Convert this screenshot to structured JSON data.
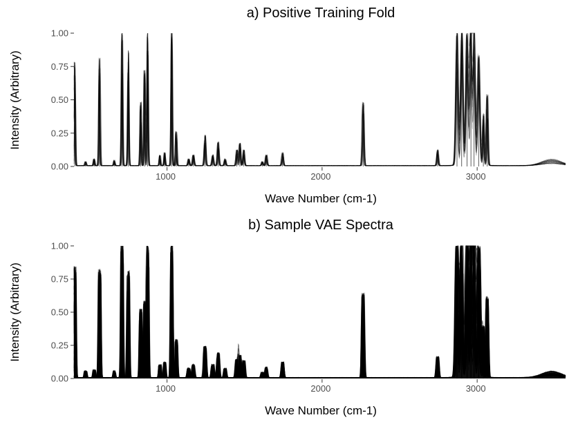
{
  "chart_data": [
    {
      "type": "line",
      "title": "a) Positive Training Fold",
      "xlabel": "Wave Number (cm-1)",
      "ylabel": "Intensity (Arbitrary)",
      "xlim": [
        400,
        3570
      ],
      "ylim": [
        0,
        1.0
      ],
      "xticks": [
        1000,
        2000,
        3000
      ],
      "xtick_labels": [
        "1000",
        "2000",
        "3000"
      ],
      "yticks": [
        0,
        0.25,
        0.5,
        0.75,
        1.0
      ],
      "ytick_labels": [
        "0.00",
        "0.25",
        "0.50",
        "0.75",
        "1.00"
      ],
      "grid": false,
      "legend": "none",
      "line_color": "#000000",
      "peaks": [
        {
          "x": 405,
          "y": 0.78
        },
        {
          "x": 475,
          "y": 0.03
        },
        {
          "x": 530,
          "y": 0.05
        },
        {
          "x": 565,
          "y": 0.81
        },
        {
          "x": 660,
          "y": 0.04
        },
        {
          "x": 710,
          "y": 1.0
        },
        {
          "x": 750,
          "y": 0.87
        },
        {
          "x": 830,
          "y": 0.48
        },
        {
          "x": 855,
          "y": 0.72
        },
        {
          "x": 875,
          "y": 1.0
        },
        {
          "x": 955,
          "y": 0.08
        },
        {
          "x": 985,
          "y": 0.1
        },
        {
          "x": 1030,
          "y": 1.0
        },
        {
          "x": 1060,
          "y": 0.26
        },
        {
          "x": 1140,
          "y": 0.05
        },
        {
          "x": 1170,
          "y": 0.08
        },
        {
          "x": 1245,
          "y": 0.23
        },
        {
          "x": 1295,
          "y": 0.08
        },
        {
          "x": 1330,
          "y": 0.18
        },
        {
          "x": 1375,
          "y": 0.05
        },
        {
          "x": 1450,
          "y": 0.12
        },
        {
          "x": 1470,
          "y": 0.17
        },
        {
          "x": 1495,
          "y": 0.12
        },
        {
          "x": 1615,
          "y": 0.03
        },
        {
          "x": 1640,
          "y": 0.08
        },
        {
          "x": 1745,
          "y": 0.1
        },
        {
          "x": 2265,
          "y": 0.48
        },
        {
          "x": 2745,
          "y": 0.12
        },
        {
          "x": 2870,
          "y": 1.0
        },
        {
          "x": 2900,
          "y": 1.0
        },
        {
          "x": 2935,
          "y": 0.95
        },
        {
          "x": 2960,
          "y": 1.0
        },
        {
          "x": 2980,
          "y": 1.0
        },
        {
          "x": 3010,
          "y": 0.8
        },
        {
          "x": 3040,
          "y": 0.38
        },
        {
          "x": 3065,
          "y": 0.53
        }
      ]
    },
    {
      "type": "area",
      "title": "b) Sample VAE Spectra",
      "xlabel": "Wave Number (cm-1)",
      "ylabel": "Intensity (Arbitrary)",
      "xlim": [
        400,
        3570
      ],
      "ylim": [
        0,
        1.0
      ],
      "xticks": [
        1000,
        2000,
        3000
      ],
      "xtick_labels": [
        "1000",
        "2000",
        "3000"
      ],
      "yticks": [
        0,
        0.25,
        0.5,
        0.75,
        1.0
      ],
      "ytick_labels": [
        "0.00",
        "0.25",
        "0.50",
        "0.75",
        "1.00"
      ],
      "grid": false,
      "legend": "none",
      "line_color": "#000000",
      "peaks": [
        {
          "x": 405,
          "y": 0.84
        },
        {
          "x": 475,
          "y": 0.05
        },
        {
          "x": 530,
          "y": 0.06
        },
        {
          "x": 565,
          "y": 0.82
        },
        {
          "x": 660,
          "y": 0.05
        },
        {
          "x": 710,
          "y": 1.0
        },
        {
          "x": 750,
          "y": 0.81
        },
        {
          "x": 830,
          "y": 0.52
        },
        {
          "x": 855,
          "y": 0.58
        },
        {
          "x": 875,
          "y": 1.0
        },
        {
          "x": 955,
          "y": 0.1
        },
        {
          "x": 985,
          "y": 0.12
        },
        {
          "x": 1030,
          "y": 1.0
        },
        {
          "x": 1060,
          "y": 0.29
        },
        {
          "x": 1140,
          "y": 0.07
        },
        {
          "x": 1170,
          "y": 0.1
        },
        {
          "x": 1245,
          "y": 0.24
        },
        {
          "x": 1295,
          "y": 0.1
        },
        {
          "x": 1330,
          "y": 0.19
        },
        {
          "x": 1375,
          "y": 0.07
        },
        {
          "x": 1450,
          "y": 0.14
        },
        {
          "x": 1470,
          "y": 0.17
        },
        {
          "x": 1495,
          "y": 0.13
        },
        {
          "x": 1615,
          "y": 0.04
        },
        {
          "x": 1640,
          "y": 0.08
        },
        {
          "x": 1745,
          "y": 0.12
        },
        {
          "x": 2265,
          "y": 0.64
        },
        {
          "x": 2745,
          "y": 0.16
        },
        {
          "x": 2870,
          "y": 1.0
        },
        {
          "x": 2900,
          "y": 1.0
        },
        {
          "x": 2935,
          "y": 1.0
        },
        {
          "x": 2960,
          "y": 1.0
        },
        {
          "x": 2980,
          "y": 1.0
        },
        {
          "x": 3010,
          "y": 0.97
        },
        {
          "x": 3040,
          "y": 0.38
        },
        {
          "x": 3065,
          "y": 0.61
        }
      ]
    }
  ]
}
